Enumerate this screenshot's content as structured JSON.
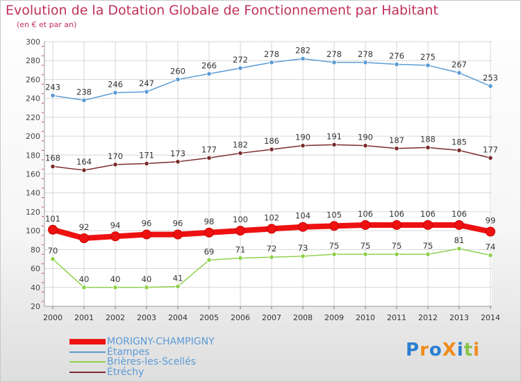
{
  "title": "Evolution de la Dotation Globale de Fonctionnement par Habitant",
  "subtitle": "(en € et par an)",
  "logo": {
    "text": "ProXiti",
    "letters": [
      {
        "ch": "P",
        "color": "#2a7fd0"
      },
      {
        "ch": "r",
        "color": "#f08a1c"
      },
      {
        "ch": "o",
        "color": "#2a7fd0"
      },
      {
        "ch": "X",
        "color": "#f08a1c"
      },
      {
        "ch": "i",
        "color": "#2a7fd0"
      },
      {
        "ch": "t",
        "color": "#8bc34a"
      },
      {
        "ch": "i",
        "color": "#f08a1c"
      }
    ]
  },
  "chart_data": {
    "type": "line",
    "title": "Evolution de la Dotation Globale de Fonctionnement par Habitant",
    "subtitle": "(en € et par an)",
    "xlabel": "",
    "ylabel": "",
    "ylim": [
      20,
      300
    ],
    "yticks": [
      20,
      40,
      60,
      80,
      100,
      120,
      140,
      160,
      180,
      200,
      220,
      240,
      260,
      280,
      300
    ],
    "grid": true,
    "legend_position": "bottom-left",
    "x": [
      "2000",
      "2001",
      "2002",
      "2003",
      "2004",
      "2005",
      "2006",
      "2007",
      "2008",
      "2009",
      "2010",
      "2011",
      "2012",
      "2013",
      "2014"
    ],
    "series": [
      {
        "name": "Étampes",
        "color": "#5b9bd5",
        "text_color": "#5b9bd5",
        "style": "thin",
        "values": [
          243,
          238,
          246,
          247,
          260,
          266,
          272,
          278,
          282,
          278,
          278,
          276,
          275,
          267,
          253
        ]
      },
      {
        "name": "Étréchy",
        "color": "#7b2a2a",
        "text_color": "#5b9bd5",
        "style": "thin",
        "values": [
          168,
          164,
          170,
          171,
          173,
          177,
          182,
          186,
          190,
          191,
          190,
          187,
          188,
          185,
          177
        ]
      },
      {
        "name": "MORIGNY-CHAMPIGNY",
        "color": "#ee1111",
        "text_color": "#5b9bd5",
        "style": "thick",
        "values": [
          101,
          92,
          94,
          96,
          96,
          98,
          100,
          102,
          104,
          105,
          106,
          106,
          106,
          106,
          99
        ]
      },
      {
        "name": "Brières-les-Scellés",
        "color": "#8ed14b",
        "text_color": "#5b9bd5",
        "style": "thin",
        "values": [
          70,
          40,
          40,
          40,
          41,
          69,
          71,
          72,
          73,
          75,
          75,
          75,
          75,
          81,
          74
        ]
      }
    ],
    "legend_order": [
      "MORIGNY-CHAMPIGNY",
      "Étampes",
      "Brières-les-Scellés",
      "Étréchy"
    ]
  }
}
